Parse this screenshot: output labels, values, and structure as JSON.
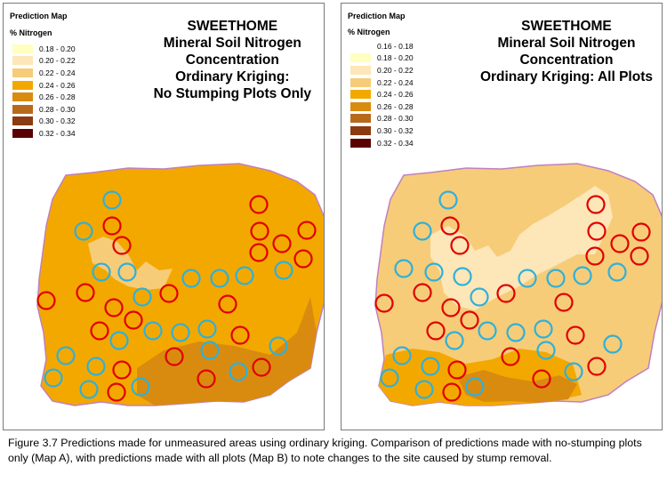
{
  "figure_caption": "Figure 3.7  Predictions made for unmeasured areas using ordinary kriging. Comparison of predictions made with no-stumping plots only (Map A), with predictions made with all plots (Map B) to note changes to the site caused by stump removal.",
  "colors": {
    "outline": "#c080c0",
    "plot_red": "#e00000",
    "plot_cyan": "#30b0d8"
  },
  "map_a": {
    "legend_title": "Prediction Map",
    "legend_subtitle": "% Nitrogen",
    "legend": [
      {
        "label": "0.18 - 0.20",
        "color": "#ffffc0"
      },
      {
        "label": "0.20 - 0.22",
        "color": "#fde6b8"
      },
      {
        "label": "0.22 - 0.24",
        "color": "#f6cc78"
      },
      {
        "label": "0.24 - 0.26",
        "color": "#f3a800"
      },
      {
        "label": "0.26 - 0.28",
        "color": "#d98b10"
      },
      {
        "label": "0.28 - 0.30",
        "color": "#b86a1c"
      },
      {
        "label": "0.30 - 0.32",
        "color": "#8c3a10"
      },
      {
        "label": "0.32 - 0.34",
        "color": "#5a0000"
      }
    ],
    "title_lines": [
      "SWEETHOME",
      "Mineral Soil Nitrogen",
      "Concentration",
      "Ordinary Kriging:",
      "No Stumping Plots Only"
    ]
  },
  "map_b": {
    "legend_title": "Prediction Map",
    "legend_subtitle": "% Nitrogen",
    "legend": [
      {
        "label": "0.16 - 0.18",
        "color": "#ffffff"
      },
      {
        "label": "0.18 - 0.20",
        "color": "#ffffc0"
      },
      {
        "label": "0.20 - 0.22",
        "color": "#fde6b8"
      },
      {
        "label": "0.22 - 0.24",
        "color": "#f6cc78"
      },
      {
        "label": "0.24 - 0.26",
        "color": "#f3a800"
      },
      {
        "label": "0.26 - 0.28",
        "color": "#d98b10"
      },
      {
        "label": "0.28 - 0.30",
        "color": "#b86a1c"
      },
      {
        "label": "0.30 - 0.32",
        "color": "#8c3a10"
      },
      {
        "label": "0.32 - 0.34",
        "color": "#5a0000"
      }
    ],
    "title_lines": [
      "SWEETHOME",
      "Mineral Soil Nitrogen",
      "Concentration",
      "Ordinary Kriging: All Plots"
    ]
  }
}
